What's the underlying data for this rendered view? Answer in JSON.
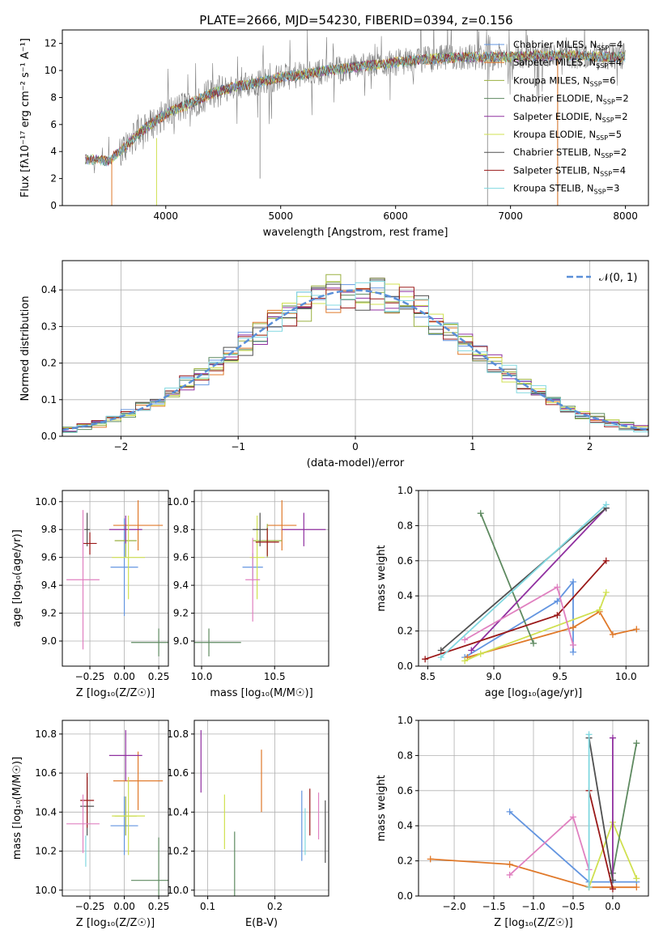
{
  "title": "PLATE=2666, MJD=54230, FIBERID=0394, z=0.156",
  "colors": [
    "#6395e0",
    "#e0792a",
    "#9ab040",
    "#5e8a60",
    "#9030a0",
    "#d0e050",
    "#505050",
    "#9a1818",
    "#80d8e0",
    "#e080c0",
    "#808080"
  ],
  "legend": [
    {
      "label": "Chabrier MILES, N",
      "sub": "SSP",
      "eq": "=4",
      "color": "#6395e0"
    },
    {
      "label": "Salpeter MILES, N",
      "sub": "SSP",
      "eq": "=4",
      "color": "#e0792a"
    },
    {
      "label": "Kroupa MILES, N",
      "sub": "SSP",
      "eq": "=6",
      "color": "#9ab040"
    },
    {
      "label": "Chabrier ELODIE, N",
      "sub": "SSP",
      "eq": "=2",
      "color": "#5e8a60"
    },
    {
      "label": "Salpeter ELODIE, N",
      "sub": "SSP",
      "eq": "=2",
      "color": "#9030a0"
    },
    {
      "label": "Kroupa ELODIE, N",
      "sub": "SSP",
      "eq": "=5",
      "color": "#d0e050"
    },
    {
      "label": "Chabrier STELIB, N",
      "sub": "SSP",
      "eq": "=2",
      "color": "#505050"
    },
    {
      "label": "Salpeter STELIB, N",
      "sub": "SSP",
      "eq": "=4",
      "color": "#9a1818"
    },
    {
      "label": "Kroupa STELIB, N",
      "sub": "SSP",
      "eq": "=3",
      "color": "#80d8e0"
    }
  ],
  "chart_data": [
    {
      "type": "line",
      "xlabel": "wavelength [Angstrom, rest frame]",
      "ylabel": "Flux [fλ10⁻¹⁷ erg cm⁻² s⁻¹ A⁻¹]",
      "xlim": [
        3100,
        8200
      ],
      "ylim": [
        0,
        13
      ],
      "xticks": [
        "4000",
        "5000",
        "6000",
        "7000",
        "8000"
      ],
      "yticks": [
        "0",
        "2",
        "4",
        "6",
        "8",
        "10",
        "12"
      ],
      "spectrum": {
        "x": [
          3300,
          3400,
          3500,
          3600,
          3800,
          4000,
          4200,
          4400,
          4600,
          4800,
          5000,
          5200,
          5400,
          5600,
          5800,
          6000,
          6200,
          6400,
          6600,
          6800,
          7000,
          7200,
          7400,
          7600,
          7800,
          8000
        ],
        "y": [
          3.4,
          3.4,
          3.3,
          4.0,
          5.6,
          6.8,
          7.5,
          8.3,
          8.8,
          9.1,
          9.5,
          9.7,
          10.0,
          10.2,
          10.4,
          10.6,
          10.8,
          10.9,
          11.0,
          11.0,
          11.0,
          11.1,
          11.1,
          11.1,
          11.0,
          11.0
        ]
      }
    },
    {
      "type": "histogram",
      "xlabel": "(data-model)/error",
      "ylabel": "Normed distribution",
      "xlim": [
        -2.5,
        2.5
      ],
      "ylim": [
        0,
        0.48
      ],
      "xticks": [
        "−2",
        "−1",
        "0",
        "1",
        "2"
      ],
      "yticks": [
        "0.0",
        "0.1",
        "0.2",
        "0.3",
        "0.4"
      ],
      "reference_label": "𝒩(0, 1)",
      "reference": {
        "mean": 0,
        "sigma": 1
      }
    },
    {
      "type": "scatter",
      "name": "age vs Z",
      "xlabel": "Z [log₁₀(Z/Z☉)]",
      "ylabel": "age  [log₁₀(age/yr)]",
      "xlim": [
        -0.45,
        0.32
      ],
      "ylim": [
        8.82,
        10.08
      ],
      "xticks": [
        "−0.25",
        "0.00",
        "0.25"
      ],
      "yticks": [
        "9.0",
        "9.2",
        "9.4",
        "9.6",
        "9.8",
        "10.0"
      ],
      "points": [
        {
          "x": 0.0,
          "y": 9.53,
          "xerr": 0.1,
          "yerr": 0.35,
          "c": 0
        },
        {
          "x": 0.1,
          "y": 9.83,
          "xerr": 0.18,
          "yerr": 0.18,
          "c": 1
        },
        {
          "x": 0.01,
          "y": 9.72,
          "xerr": 0.08,
          "yerr": 0.12,
          "c": 2
        },
        {
          "x": 0.25,
          "y": 8.99,
          "xerr": 0.2,
          "yerr": 0.1,
          "c": 3
        },
        {
          "x": 0.01,
          "y": 9.8,
          "xerr": 0.12,
          "yerr": 0.1,
          "c": 4
        },
        {
          "x": 0.03,
          "y": 9.6,
          "xerr": 0.12,
          "yerr": 0.3,
          "c": 5
        },
        {
          "x": -0.27,
          "y": 9.8,
          "xerr": 0.02,
          "yerr": 0.12,
          "c": 6
        },
        {
          "x": -0.25,
          "y": 9.7,
          "xerr": 0.05,
          "yerr": 0.08,
          "c": 7
        },
        {
          "x": -0.3,
          "y": 9.44,
          "xerr": 0.12,
          "yerr": 0.5,
          "c": 9
        }
      ]
    },
    {
      "type": "scatter",
      "name": "age vs mass",
      "xlabel": "mass [log₁₀(M/M☉)]",
      "ylabel": "",
      "xlim": [
        9.95,
        10.87
      ],
      "ylim": [
        8.82,
        10.08
      ],
      "xticks": [
        "10.0",
        "10.5"
      ],
      "yticks": [
        "9.0",
        "9.2",
        "9.4",
        "9.6",
        "9.8",
        "10.0"
      ],
      "points": [
        {
          "x": 10.35,
          "y": 9.53,
          "xerr": 0.07,
          "yerr": 0.1,
          "c": 0
        },
        {
          "x": 10.55,
          "y": 9.83,
          "xerr": 0.1,
          "yerr": 0.18,
          "c": 1
        },
        {
          "x": 10.45,
          "y": 9.72,
          "xerr": 0.1,
          "yerr": 0.12,
          "c": 2
        },
        {
          "x": 10.05,
          "y": 8.99,
          "xerr": 0.22,
          "yerr": 0.1,
          "c": 3
        },
        {
          "x": 10.7,
          "y": 9.8,
          "xerr": 0.15,
          "yerr": 0.12,
          "c": 4
        },
        {
          "x": 10.38,
          "y": 9.6,
          "xerr": 0.05,
          "yerr": 0.3,
          "c": 5
        },
        {
          "x": 10.4,
          "y": 9.8,
          "xerr": 0.05,
          "yerr": 0.12,
          "c": 6
        },
        {
          "x": 10.45,
          "y": 9.71,
          "xerr": 0.08,
          "yerr": 0.1,
          "c": 7
        },
        {
          "x": 10.35,
          "y": 9.44,
          "xerr": 0.05,
          "yerr": 0.3,
          "c": 9
        }
      ]
    },
    {
      "type": "line",
      "name": "mass weight vs age",
      "xlabel": "age  [log₁₀(age/yr)]",
      "ylabel": "mass weight",
      "xlim": [
        8.43,
        10.17
      ],
      "ylim": [
        0,
        1
      ],
      "xticks": [
        "8.5",
        "9.0",
        "9.5",
        "10.0"
      ],
      "yticks": [
        "0.0",
        "0.2",
        "0.4",
        "0.6",
        "0.8",
        "1.0"
      ],
      "series": [
        {
          "c": 0,
          "x": [
            8.78,
            9.48,
            9.6,
            9.6
          ],
          "y": [
            0.05,
            0.37,
            0.48,
            0.08
          ]
        },
        {
          "c": 1,
          "x": [
            8.8,
            9.6,
            9.8,
            9.9,
            10.08
          ],
          "y": [
            0.05,
            0.22,
            0.31,
            0.18,
            0.21
          ]
        },
        {
          "c": 5,
          "x": [
            8.78,
            8.9,
            9.8,
            9.85
          ],
          "y": [
            0.03,
            0.07,
            0.32,
            0.42
          ]
        },
        {
          "c": 3,
          "x": [
            8.9,
            9.3
          ],
          "y": [
            0.87,
            0.13
          ]
        },
        {
          "c": 4,
          "x": [
            8.83,
            9.85
          ],
          "y": [
            0.09,
            0.9
          ]
        },
        {
          "c": 6,
          "x": [
            8.6,
            9.85
          ],
          "y": [
            0.09,
            0.9
          ]
        },
        {
          "c": 7,
          "x": [
            8.48,
            9.48,
            9.85
          ],
          "y": [
            0.04,
            0.29,
            0.6
          ]
        },
        {
          "c": 9,
          "x": [
            8.78,
            9.48,
            9.6
          ],
          "y": [
            0.15,
            0.45,
            0.12
          ]
        },
        {
          "c": 8,
          "x": [
            8.6,
            9.85
          ],
          "y": [
            0.05,
            0.92
          ]
        }
      ]
    },
    {
      "type": "scatter",
      "name": "mass vs Z",
      "xlabel": "Z [log₁₀(Z/Z☉)]",
      "ylabel": "mass [log₁₀(M/M☉)]",
      "xlim": [
        -0.45,
        0.32
      ],
      "ylim": [
        9.97,
        10.87
      ],
      "xticks": [
        "−0.25",
        "0.00",
        "0.25"
      ],
      "yticks": [
        "10.0",
        "10.2",
        "10.4",
        "10.6",
        "10.8"
      ],
      "points": [
        {
          "x": 0.0,
          "y": 10.33,
          "xerr": 0.1,
          "yerr": 0.15,
          "c": 0
        },
        {
          "x": 0.1,
          "y": 10.56,
          "xerr": 0.18,
          "yerr": 0.15,
          "c": 1
        },
        {
          "x": 0.01,
          "y": 10.38,
          "xerr": 0.08,
          "yerr": 0.1,
          "c": 2
        },
        {
          "x": 0.25,
          "y": 10.05,
          "xerr": 0.2,
          "yerr": 0.22,
          "c": 3
        },
        {
          "x": 0.01,
          "y": 10.69,
          "xerr": 0.12,
          "yerr": 0.13,
          "c": 4
        },
        {
          "x": 0.03,
          "y": 10.38,
          "xerr": 0.12,
          "yerr": 0.2,
          "c": 5
        },
        {
          "x": -0.27,
          "y": 10.43,
          "xerr": 0.05,
          "yerr": 0.15,
          "c": 6
        },
        {
          "x": -0.27,
          "y": 10.46,
          "xerr": 0.05,
          "yerr": 0.14,
          "c": 7
        },
        {
          "x": -0.3,
          "y": 10.34,
          "xerr": 0.12,
          "yerr": 0.15,
          "c": 9
        },
        {
          "x": -0.28,
          "y": 10.2,
          "xerr": 0.0,
          "yerr": 0.08,
          "c": 8
        }
      ]
    },
    {
      "type": "scatter",
      "name": "mass vs E(B-V)",
      "xlabel": "E(B-V)",
      "ylabel": "",
      "xlim": [
        0.08,
        0.28
      ],
      "ylim": [
        9.97,
        10.87
      ],
      "xticks": [
        "0.1",
        "0.2"
      ],
      "yticks": [
        "10.0",
        "10.2",
        "10.4",
        "10.6",
        "10.8"
      ],
      "points": [
        {
          "x": 0.24,
          "y": 10.33,
          "yerr": 0.18,
          "c": 0
        },
        {
          "x": 0.18,
          "y": 10.56,
          "yerr": 0.16,
          "c": 1
        },
        {
          "x": 0.125,
          "y": 10.35,
          "yerr": 0.14,
          "c": 5
        },
        {
          "x": 0.14,
          "y": 10.13,
          "yerr": 0.17,
          "c": 3
        },
        {
          "x": 0.09,
          "y": 10.66,
          "yerr": 0.16,
          "c": 4
        },
        {
          "x": 0.275,
          "y": 10.3,
          "yerr": 0.16,
          "c": 6
        },
        {
          "x": 0.252,
          "y": 10.4,
          "yerr": 0.12,
          "c": 7
        },
        {
          "x": 0.245,
          "y": 10.3,
          "yerr": 0.12,
          "c": 8
        },
        {
          "x": 0.265,
          "y": 10.38,
          "yerr": 0.12,
          "c": 9
        }
      ]
    },
    {
      "type": "line",
      "name": "mass weight vs Z",
      "xlabel": "Z [log₁₀(Z/Z☉)]",
      "ylabel": "mass weight",
      "xlim": [
        -2.45,
        0.45
      ],
      "ylim": [
        0,
        1
      ],
      "xticks": [
        "−2.0",
        "−1.5",
        "−1.0",
        "−0.5",
        "0.0"
      ],
      "yticks": [
        "0.0",
        "0.2",
        "0.4",
        "0.6",
        "0.8",
        "1.0"
      ],
      "series": [
        {
          "c": 0,
          "x": [
            -1.3,
            -0.3,
            0.3
          ],
          "y": [
            0.48,
            0.08,
            0.08
          ]
        },
        {
          "c": 1,
          "x": [
            -2.3,
            -1.3,
            -0.3,
            0.3
          ],
          "y": [
            0.21,
            0.18,
            0.05,
            0.05
          ]
        },
        {
          "c": 5,
          "x": [
            -0.3,
            0.0,
            0.3
          ],
          "y": [
            0.05,
            0.42,
            0.1
          ]
        },
        {
          "c": 3,
          "x": [
            0.0,
            0.3
          ],
          "y": [
            0.13,
            0.87
          ]
        },
        {
          "c": 4,
          "x": [
            0.0,
            0.0
          ],
          "y": [
            0.09,
            0.9
          ]
        },
        {
          "c": 6,
          "x": [
            -0.3,
            0.0
          ],
          "y": [
            0.9,
            0.09
          ]
        },
        {
          "c": 7,
          "x": [
            -0.3,
            0.0
          ],
          "y": [
            0.6,
            0.04
          ]
        },
        {
          "c": 9,
          "x": [
            -1.3,
            -0.5,
            -0.3
          ],
          "y": [
            0.12,
            0.45,
            0.15
          ]
        },
        {
          "c": 8,
          "x": [
            -0.3,
            -0.3
          ],
          "y": [
            0.92,
            0.05
          ]
        }
      ]
    }
  ]
}
